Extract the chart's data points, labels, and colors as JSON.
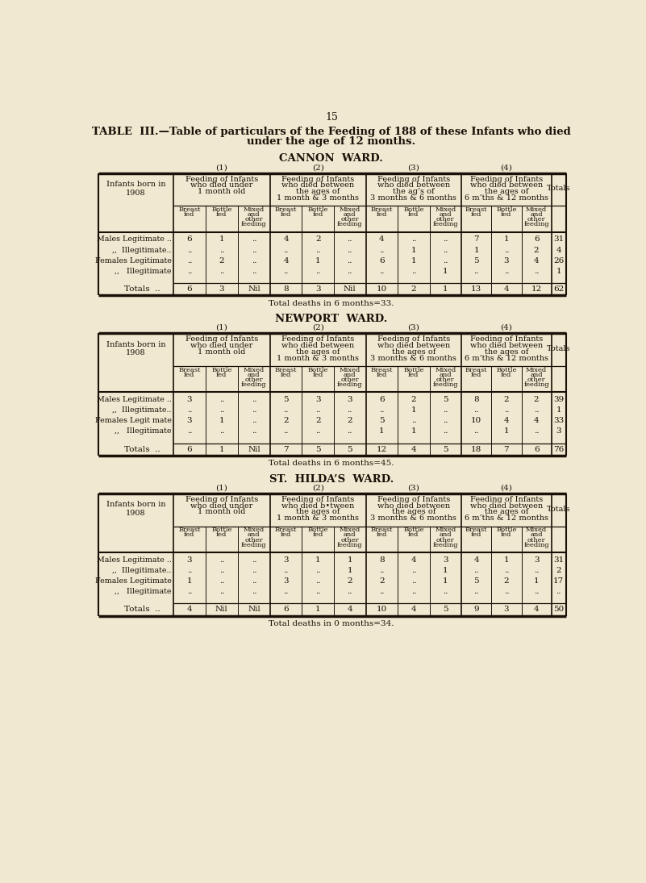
{
  "page_number": "15",
  "main_title_line1": "TABLE  III.—Table of particulars of the Feeding of 188 of these Infants who died",
  "main_title_line2": "under the age of 12 months.",
  "bg_color": "#f0e8d0",
  "text_color": "#1a1008",
  "ward_titles": [
    "CANNON  WARD.",
    "NEWPORT  WARD.",
    "ST.  HILDA’S  WARD."
  ],
  "col_numbers": [
    "(1)",
    "(2)",
    "(3)",
    "(4)"
  ],
  "col3_header_cannon": "Feeding of Infants\nwho died between\nthe ag’s of\n3 months & 6 months",
  "col2_header_hilda": "Feeding of Infants\nwho died b•tween\nthe ages of\n1 month & 3 months",
  "row_labels": [
    [
      "Males Legitimate ..",
      ",,  Illegitimate..",
      "Females Legitimate",
      ",,   Illegitimate"
    ],
    [
      "Males Legitimate ..",
      ",,  Illegitimate..",
      "Females Legit mate",
      ",,   Illegitimate"
    ],
    [
      "Males Legitimate ..",
      ",,  Illegitimate..",
      "Females Legitimate",
      ",,   Illegitimate"
    ]
  ],
  "cannon_data": {
    "rows": [
      [
        "6",
        "1",
        "..",
        "4",
        "2",
        "..",
        "4",
        "..",
        "..",
        "7",
        "1",
        "6",
        "31"
      ],
      [
        "..",
        "..",
        "..",
        "..",
        "..",
        "..",
        "..",
        "1",
        "..",
        "1",
        "..",
        "2",
        "4"
      ],
      [
        "..",
        "2",
        "..",
        "4",
        "1",
        "..",
        "6",
        "1",
        "..",
        "5",
        "3",
        "4",
        "26"
      ],
      [
        "..",
        "..",
        "..",
        "..",
        "..",
        "..",
        "..",
        "..",
        "1",
        "..",
        "..",
        "..",
        "1"
      ]
    ],
    "totals": [
      "6",
      "3",
      "Nil",
      "8",
      "3",
      "Nil",
      "10",
      "2",
      "1",
      "13",
      "4",
      "12",
      "62"
    ],
    "footer": "Total deaths in 6 months=33."
  },
  "newport_data": {
    "rows": [
      [
        "3",
        "..",
        "..",
        "5",
        "3",
        "3",
        "6",
        "2",
        "5",
        "8",
        "2",
        "2",
        "39"
      ],
      [
        "..",
        "..",
        "..",
        "..",
        "..",
        "..",
        "..",
        "1",
        "..",
        "..",
        "..",
        "..",
        "1"
      ],
      [
        "3",
        "1",
        "..",
        "2",
        "2",
        "2",
        "5",
        "..",
        "..",
        "10",
        "4",
        "4",
        "33"
      ],
      [
        "..",
        "..",
        "..",
        "..",
        "..",
        "..",
        "1",
        "1",
        "..",
        "..",
        "1",
        "..",
        "3"
      ]
    ],
    "totals": [
      "6",
      "1",
      "Nil",
      "7",
      "5",
      "5",
      "12",
      "4",
      "5",
      "18",
      "7",
      "6",
      "76"
    ],
    "footer": "Total deaths in 6 months=45."
  },
  "hildas_data": {
    "rows": [
      [
        "3",
        "..",
        "..",
        "3",
        "1",
        "1",
        "8",
        "4",
        "3",
        "4",
        "1",
        "3",
        "31"
      ],
      [
        "..",
        "..",
        "..",
        "..",
        "..",
        "1",
        "..",
        "..",
        "1",
        "..",
        "..",
        "..",
        "2"
      ],
      [
        "1",
        "..",
        "..",
        "3",
        "..",
        "2",
        "2",
        "..",
        "1",
        "5",
        "2",
        "1",
        "17"
      ],
      [
        "..",
        "..",
        "..",
        "..",
        "..",
        "..",
        "..",
        "..",
        "..",
        "..",
        "..",
        "..",
        ".."
      ]
    ],
    "totals": [
      "4",
      "Nil",
      "Nil",
      "6",
      "1",
      "4",
      "10",
      "4",
      "5",
      "9",
      "3",
      "4",
      "50"
    ],
    "footer": "Total deaths in 0 months=34."
  }
}
